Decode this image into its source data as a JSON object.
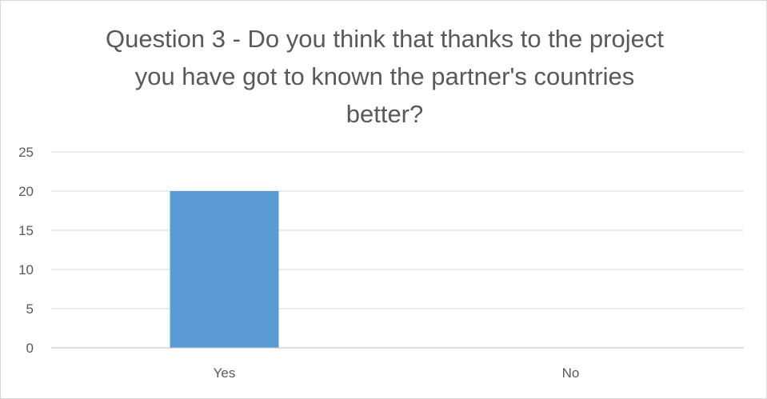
{
  "chart_data": {
    "type": "bar",
    "title": "Question 3 - Do you think that thanks to the project you have got to known the partner's countries better?",
    "categories": [
      "Yes",
      "No"
    ],
    "values": [
      20,
      0
    ],
    "ylim": [
      0,
      25
    ],
    "yticks": [
      0,
      5,
      10,
      15,
      20,
      25
    ],
    "xlabel": "",
    "ylabel": "",
    "grid": true,
    "legend": false,
    "colors": {
      "bar": "#5b9bd5",
      "grid": "#d9d9d9",
      "axis": "#bfbfbf",
      "text": "#595959"
    }
  }
}
